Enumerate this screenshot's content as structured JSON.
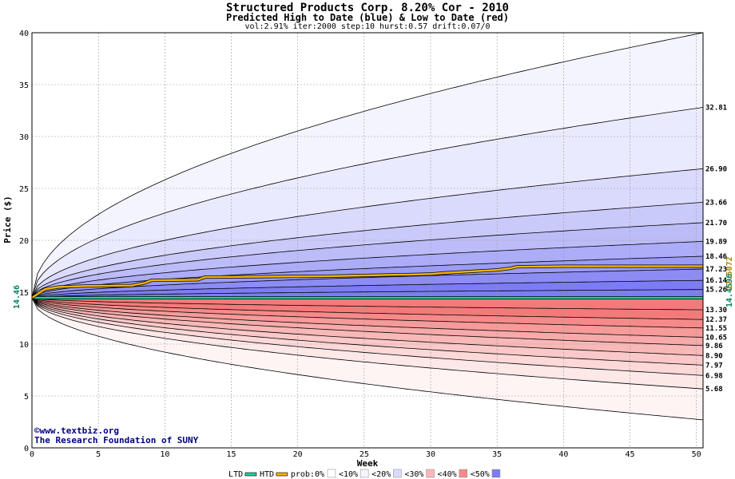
{
  "header": {
    "title": "Structured Products Corp. 8.20% Cor - 2010",
    "subtitle": "Predicted High to Date (blue) &  Low to Date (red)",
    "params": "vol:2.91% iter:2000 step:10 hurst:0.57 drift:0.07/0"
  },
  "credit": {
    "url": "www.textbiz.org",
    "org": "The Research Foundation of SUNY"
  },
  "chart_data": {
    "type": "area",
    "xlabel": "Week",
    "ylabel": "Price ($)",
    "xlim": [
      0,
      50.5
    ],
    "ylim": [
      0,
      40
    ],
    "x_ticks": [
      0,
      5,
      10,
      15,
      20,
      25,
      30,
      35,
      40,
      45,
      50
    ],
    "y_ticks": [
      0,
      5,
      10,
      15,
      20,
      25,
      30,
      35,
      40
    ],
    "start_price": 14.46,
    "start_label": "14.46",
    "grid": true,
    "upper_percentiles": [
      {
        "final": 15.26,
        "label": "15.26",
        "fill": "#7c7cf6"
      },
      {
        "final": 16.14,
        "label": "16.14",
        "fill": "#7c7cf6"
      },
      {
        "final": 17.23,
        "label": "17.23",
        "fill": "#8c8cf4"
      },
      {
        "final": 18.46,
        "label": "18.46",
        "fill": "#9c9cf6"
      },
      {
        "final": 19.89,
        "label": "19.89",
        "fill": "#acacf8"
      },
      {
        "final": 21.7,
        "label": "21.70",
        "fill": "#bcbcf8"
      },
      {
        "final": 23.66,
        "label": "23.66",
        "fill": "#cacafa"
      },
      {
        "final": 26.9,
        "label": "26.90",
        "fill": "#dadafc"
      },
      {
        "final": 32.81,
        "label": "32.81",
        "fill": "#eaeafe"
      },
      {
        "final": 40.0,
        "label": "",
        "fill": "#f4f4ff"
      }
    ],
    "lower_percentiles": [
      {
        "final": 13.3,
        "label": "13.30",
        "fill": "#f47a7a"
      },
      {
        "final": 12.37,
        "label": "12.37",
        "fill": "#f47a7a"
      },
      {
        "final": 11.55,
        "label": "11.55",
        "fill": "#f68a8a"
      },
      {
        "final": 10.65,
        "label": "10.65",
        "fill": "#f69a9a"
      },
      {
        "final": 9.86,
        "label": "9.86",
        "fill": "#f8aaaa"
      },
      {
        "final": 8.9,
        "label": "8.90",
        "fill": "#f8b8b8"
      },
      {
        "final": 7.97,
        "label": "7.97",
        "fill": "#fac8c8"
      },
      {
        "final": 6.98,
        "label": "6.98",
        "fill": "#fcd8d8"
      },
      {
        "final": 5.68,
        "label": "5.68",
        "fill": "#fde8e8"
      },
      {
        "final": 2.7,
        "label": "",
        "fill": "#fff4f4"
      }
    ],
    "htd_series": {
      "name": "HTD",
      "x": [
        0,
        1,
        2,
        4,
        7.5,
        8.5,
        9,
        12.5,
        13,
        22.5,
        30,
        31,
        33,
        35,
        36,
        36.5,
        40,
        50.5
      ],
      "y": [
        14.46,
        15.3,
        15.5,
        15.6,
        15.65,
        15.9,
        16.15,
        16.2,
        16.45,
        16.55,
        16.75,
        16.85,
        17.0,
        17.15,
        17.3,
        17.45,
        17.5,
        17.5
      ],
      "color": "#f0b400",
      "end_label": "17.5072"
    },
    "ltd_series": {
      "name": "LTD",
      "x": [
        0,
        50.5
      ],
      "y": [
        14.46,
        14.46
      ],
      "color": "#20d0a0",
      "end_label": "14.4596"
    },
    "legend": {
      "items": [
        {
          "label": "LTD",
          "color": "#20d0a0",
          "kind": "line"
        },
        {
          "label": "HTD",
          "color": "#f0b400",
          "kind": "line"
        },
        {
          "label": "prob:0%",
          "color": "#ffffff",
          "kind": "swatch"
        },
        {
          "label": "<10%",
          "color": "#f4f4ff",
          "kind": "swatch"
        },
        {
          "label": "<20%",
          "color": "#dadafc",
          "kind": "swatch"
        },
        {
          "label": "<30%",
          "color": "#f8b8b8",
          "kind": "swatch"
        },
        {
          "label": "<40%",
          "color": "#f68a8a",
          "kind": "swatch"
        },
        {
          "label": "<50%",
          "color": "#7c7cf6",
          "kind": "swatch"
        }
      ]
    }
  }
}
